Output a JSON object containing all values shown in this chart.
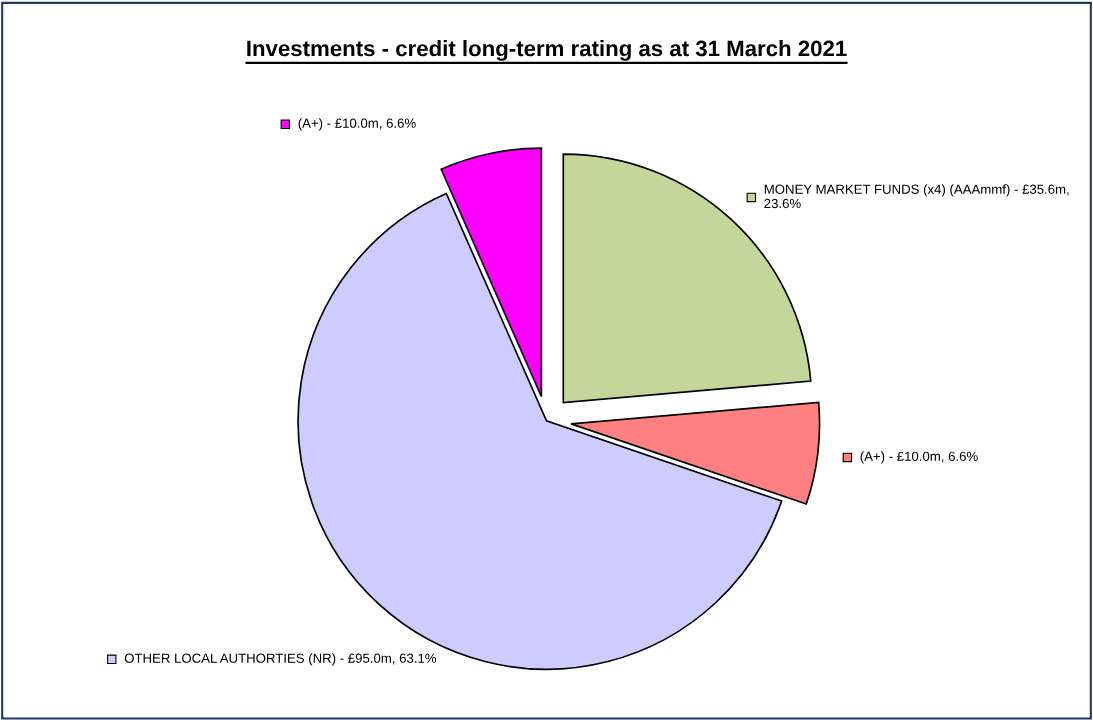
{
  "chart_data": {
    "type": "pie",
    "title": "Investments - credit long-term rating as at 31 March 2021",
    "categories": [
      "MONEY MARKET FUNDS (x4) (AAAmmf) - £35.6m, 23.6%",
      "(A+) - £10.0m, 6.6%",
      "OTHER LOCAL AUTHORTIES (NR) - £95.0m, 63.1%",
      "(A+) - £10.0m, 6.6%"
    ],
    "values": [
      23.6,
      6.6,
      63.1,
      6.6
    ],
    "colors": [
      "#c4d79b",
      "#ff8080",
      "#ccccff",
      "#ff00ff"
    ],
    "legend": "right"
  }
}
